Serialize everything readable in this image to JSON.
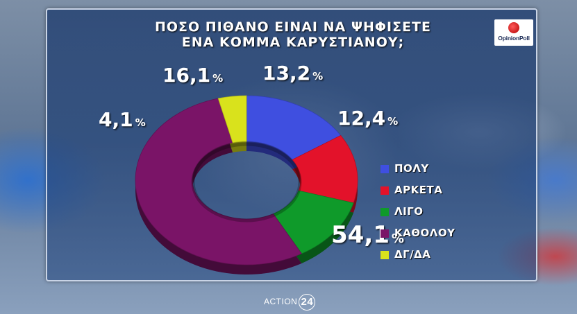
{
  "header": {
    "title_line1": "ΠΟΣΟ ΠΙΘΑΝΟ ΕΙΝΑΙ ΝΑ ΨΗΦΙΣΕΤΕ",
    "title_line2": "ΕΝΑ ΚΟΜΜΑ ΚΑΡΥΣΤΙΑΝΟΥ;",
    "logo_text": "OpinionPoll"
  },
  "footer": {
    "brand": "ACTION",
    "number": "24"
  },
  "chart_data": {
    "type": "pie",
    "title": "ΠΟΣΟ ΠΙΘΑΝΟ ΕΙΝΑΙ ΝΑ ΨΗΦΙΣΕΤΕ ΕΝΑ ΚΟΜΜΑ ΚΑΡΥΣΤΙΑΝΟΥ;",
    "style": "donut-3d",
    "legend_position": "right",
    "slices": [
      {
        "label": "ΠΟΛΥ",
        "value": 16.1,
        "display": "16,1",
        "color": "#3f4fe0"
      },
      {
        "label": "ΑΡΚΕΤΑ",
        "value": 13.2,
        "display": "13,2",
        "color": "#e3122a"
      },
      {
        "label": "ΛΙΓΟ",
        "value": 12.4,
        "display": "12,4",
        "color": "#0f9a2a"
      },
      {
        "label": "ΚΑΘΟΛΟΥ",
        "value": 54.1,
        "display": "54,1",
        "color": "#7a1467"
      },
      {
        "label": "ΔΓ/ΔΑ",
        "value": 4.1,
        "display": "4,1",
        "color": "#d9e21c"
      }
    ],
    "unit": "%"
  }
}
